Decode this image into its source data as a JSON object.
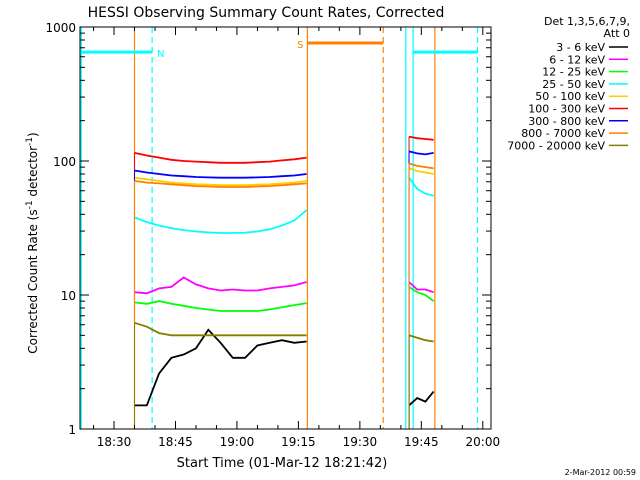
{
  "chart_data": {
    "type": "line",
    "title": "HESSI Observing Summary Count Rates, Corrected",
    "xlabel": "Start Time (01-Mar-12 18:21:42)",
    "ylabel_main": "Corrected Count Rate (s",
    "ylabel_sup1": "-1",
    "ylabel_mid": " detector",
    "ylabel_sup2": "-1",
    "ylabel_end": ")",
    "x_unit": "minutes after 18:00 UT",
    "xlim": [
      21.7,
      122
    ],
    "ylim": [
      1,
      1000
    ],
    "y_scale": "log",
    "x_ticks": [
      {
        "v": 30,
        "label": "18:30"
      },
      {
        "v": 45,
        "label": "18:45"
      },
      {
        "v": 60,
        "label": "19:00"
      },
      {
        "v": 75,
        "label": "19:15"
      },
      {
        "v": 90,
        "label": "19:30"
      },
      {
        "v": 105,
        "label": "19:45"
      },
      {
        "v": 120,
        "label": "20:00"
      }
    ],
    "y_ticks": [
      {
        "v": 1,
        "label": "1"
      },
      {
        "v": 10,
        "label": "10"
      },
      {
        "v": 100,
        "label": "100"
      },
      {
        "v": 1000,
        "label": "1000"
      }
    ],
    "legend_header": [
      "Det 1,3,5,6,7,9,",
      "Att 0"
    ],
    "legend_position": "right",
    "footer_date": "2-Mar-2012 00:59",
    "series": [
      {
        "name": "3 - 6 keV",
        "color": "#000000",
        "segments": [
          {
            "x": [
              35,
              38,
              41,
              44,
              47,
              50,
              53,
              56,
              59,
              62,
              65,
              68,
              71,
              74,
              77
            ],
            "y": [
              1.5,
              1.5,
              2.6,
              3.4,
              3.6,
              4.0,
              5.5,
              4.4,
              3.4,
              3.4,
              4.2,
              4.4,
              4.6,
              4.4,
              4.5
            ]
          },
          {
            "x": [
              102,
              104,
              106,
              108
            ],
            "y": [
              1.5,
              1.7,
              1.6,
              1.9
            ]
          }
        ]
      },
      {
        "name": "6 - 12 keV",
        "color": "#ff00ff",
        "segments": [
          {
            "x": [
              35,
              38,
              41,
              44,
              47,
              50,
              53,
              56,
              59,
              62,
              65,
              68,
              71,
              74,
              77
            ],
            "y": [
              10.5,
              10.3,
              11.2,
              11.5,
              13.5,
              12.0,
              11.2,
              10.8,
              11.0,
              10.8,
              10.8,
              11.2,
              11.5,
              11.8,
              12.5
            ]
          },
          {
            "x": [
              102,
              104,
              106,
              108
            ],
            "y": [
              12.5,
              11.0,
              11.0,
              10.5
            ]
          }
        ]
      },
      {
        "name": "12 - 25 keV",
        "color": "#00ff00",
        "segments": [
          {
            "x": [
              35,
              38,
              41,
              44,
              47,
              50,
              53,
              56,
              59,
              62,
              65,
              68,
              71,
              74,
              77
            ],
            "y": [
              8.8,
              8.6,
              9.0,
              8.6,
              8.3,
              8.0,
              7.8,
              7.6,
              7.6,
              7.6,
              7.6,
              7.8,
              8.1,
              8.4,
              8.7
            ]
          },
          {
            "x": [
              102,
              104,
              106,
              108
            ],
            "y": [
              11.5,
              10.5,
              10.0,
              9.0
            ]
          }
        ]
      },
      {
        "name": "25 - 50 keV",
        "color": "#00ffff",
        "segments": [
          {
            "x": [
              35,
              38,
              41,
              44,
              47,
              50,
              53,
              56,
              59,
              62,
              65,
              68,
              71,
              74,
              77
            ],
            "y": [
              38,
              35,
              33,
              31.5,
              30.5,
              29.8,
              29.3,
              29.0,
              29.0,
              29.2,
              29.8,
              31,
              33,
              36,
              43
            ]
          },
          {
            "x": [
              102,
              104,
              106,
              108
            ],
            "y": [
              75,
              62,
              57,
              55
            ]
          }
        ]
      },
      {
        "name": "50 - 100 keV",
        "color": "#ffcc00",
        "segments": [
          {
            "x": [
              35,
              38,
              41,
              44,
              47,
              50,
              53,
              56,
              59,
              62,
              65,
              68,
              71,
              74,
              77
            ],
            "y": [
              75,
              73,
              71,
              69,
              68,
              67,
              66.5,
              66,
              66,
              66,
              66.5,
              67,
              68,
              69,
              71
            ]
          },
          {
            "x": [
              102,
              104,
              106,
              108
            ],
            "y": [
              88,
              84,
              82,
              80
            ]
          }
        ]
      },
      {
        "name": "100 - 300 keV",
        "color": "#ff0000",
        "segments": [
          {
            "x": [
              35,
              38,
              41,
              44,
              47,
              50,
              53,
              56,
              59,
              62,
              65,
              68,
              71,
              74,
              77
            ],
            "y": [
              115,
              110,
              106,
              102,
              100,
              99,
              98,
              97,
              97,
              97,
              98,
              99,
              101,
              103,
              106
            ]
          },
          {
            "x": [
              102,
              104,
              106,
              108
            ],
            "y": [
              152,
              148,
              146,
              144
            ]
          }
        ]
      },
      {
        "name": "300 - 800 keV",
        "color": "#0000ff",
        "segments": [
          {
            "x": [
              35,
              38,
              41,
              44,
              47,
              50,
              53,
              56,
              59,
              62,
              65,
              68,
              71,
              74,
              77
            ],
            "y": [
              85,
              82,
              80,
              78,
              77,
              76,
              75.5,
              75,
              75,
              75,
              75.5,
              76,
              77,
              78,
              80
            ]
          },
          {
            "x": [
              102,
              104,
              106,
              108
            ],
            "y": [
              118,
              114,
              112,
              115
            ]
          }
        ]
      },
      {
        "name": "800 - 7000 keV",
        "color": "#ff8000",
        "segments": [
          {
            "x": [
              35,
              38,
              41,
              44,
              47,
              50,
              53,
              56,
              59,
              62,
              65,
              68,
              71,
              74,
              77
            ],
            "y": [
              71,
              69,
              68,
              67,
              66,
              65,
              64.5,
              64,
              64,
              64,
              64.5,
              65,
              66,
              67,
              68
            ]
          },
          {
            "x": [
              102,
              104,
              106,
              108
            ],
            "y": [
              96,
              92,
              90,
              88
            ]
          }
        ]
      },
      {
        "name": "7000 - 20000 keV",
        "color": "#808000",
        "segments": [
          {
            "x": [
              35,
              38,
              41,
              44,
              47,
              50,
              53,
              56,
              59,
              62,
              65,
              68,
              71,
              74,
              77
            ],
            "y": [
              6.2,
              5.8,
              5.2,
              5.0,
              5.0,
              5.0,
              5.0,
              5.0,
              5.0,
              5.0,
              5.0,
              5.0,
              5.0,
              5.0,
              5.0
            ]
          },
          {
            "x": [
              102,
              104,
              106,
              108
            ],
            "y": [
              5.0,
              4.8,
              4.6,
              4.5
            ]
          }
        ]
      }
    ],
    "annotations": [
      {
        "kind": "vline",
        "x": 22.0,
        "color": "#00ffff",
        "style": "solid"
      },
      {
        "kind": "vline",
        "x": 39.3,
        "color": "#00ffff",
        "style": "dashed"
      },
      {
        "kind": "vline",
        "x": 35.0,
        "color": "#ff8000",
        "style": "solid"
      },
      {
        "kind": "vline",
        "x": 77.2,
        "color": "#ff8000",
        "style": "solid"
      },
      {
        "kind": "vline",
        "x": 95.7,
        "color": "#ff8000",
        "style": "dashed"
      },
      {
        "kind": "vline",
        "x": 101.2,
        "color": "#00ffff",
        "style": "solid"
      },
      {
        "kind": "vline",
        "x": 103.0,
        "color": "#00ffff",
        "style": "solid"
      },
      {
        "kind": "vline",
        "x": 108.3,
        "color": "#ff8000",
        "style": "solid"
      },
      {
        "kind": "vline",
        "x": 118.7,
        "color": "#00ffff",
        "style": "dashed"
      },
      {
        "kind": "hbar",
        "x0": 22.0,
        "x1": 39.3,
        "y": 650,
        "color": "#00ffff",
        "label": "N"
      },
      {
        "kind": "hbar",
        "x0": 77.2,
        "x1": 95.7,
        "y": 760,
        "color": "#ff8000",
        "label": "S"
      },
      {
        "kind": "hbar",
        "x0": 103.0,
        "x1": 118.7,
        "y": 650,
        "color": "#00ffff",
        "label": ""
      }
    ],
    "grid": false
  }
}
